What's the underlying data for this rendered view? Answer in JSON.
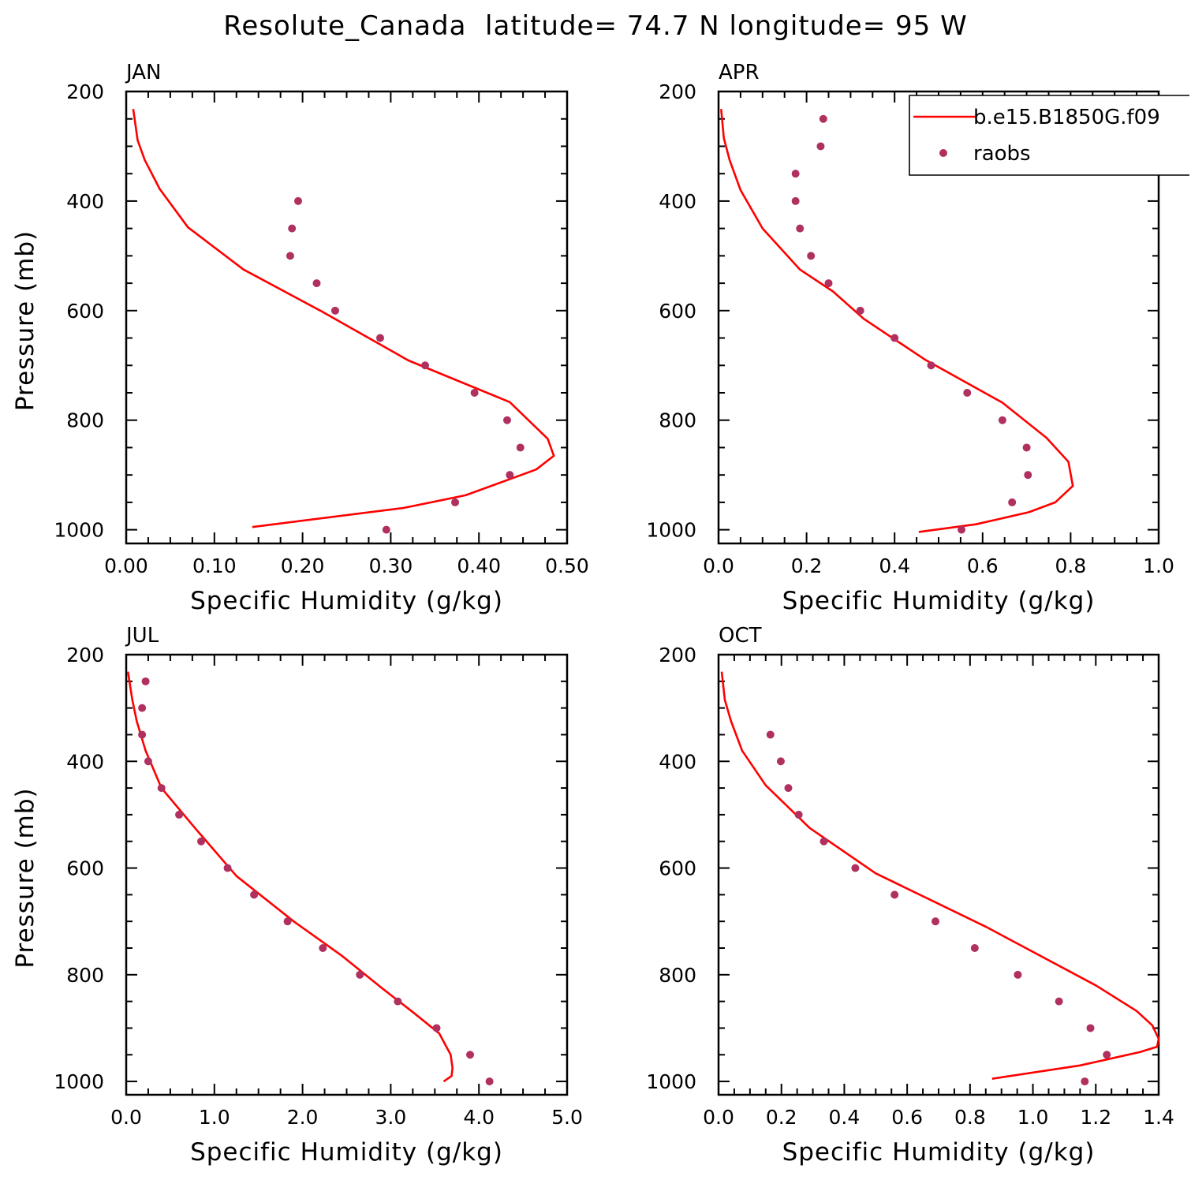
{
  "figure_title": "Resolute_Canada  latitude= 74.7 N longitude= 95 W",
  "legend": {
    "model": "b.e15.B1850G.f09",
    "obs": "raobs"
  },
  "colors": {
    "model_line": "#ff0000",
    "obs_marker": "#b03060",
    "axes": "#000000",
    "background": "#ffffff"
  },
  "chart_data": [
    {
      "type": "line",
      "panel": "JAN",
      "title": "JAN",
      "xlabel": "Specific Humidity (g/kg)",
      "ylabel": "Pressure (mb)",
      "xlim": [
        0,
        0.5
      ],
      "ylim": [
        200,
        1025
      ],
      "y_inverted": true,
      "xticks": [
        0,
        0.1,
        0.2,
        0.3,
        0.4,
        0.5
      ],
      "xtick_labels": [
        "0.00",
        "0.10",
        "0.20",
        "0.30",
        "0.40",
        "0.50"
      ],
      "yticks": [
        200,
        400,
        600,
        800,
        1000
      ],
      "ytick_labels": [
        "200",
        "400",
        "600",
        "800",
        "1000"
      ],
      "show_legend": false,
      "series": [
        {
          "name": "b.e15.B1850G.f09",
          "style": "line",
          "x": [
            0.008,
            0.013,
            0.021,
            0.038,
            0.07,
            0.133,
            0.22,
            0.32,
            0.435,
            0.478,
            0.485,
            0.465,
            0.385,
            0.315,
            0.143
          ],
          "y": [
            232,
            289,
            325,
            378,
            448,
            525,
            600,
            691,
            767,
            834,
            865,
            890,
            937,
            960,
            995
          ]
        },
        {
          "name": "raobs",
          "style": "marker",
          "x": [
            0.195,
            0.188,
            0.186,
            0.216,
            0.237,
            0.288,
            0.339,
            0.395,
            0.432,
            0.447,
            0.435,
            0.373,
            0.295
          ],
          "y": [
            400,
            450,
            500,
            550,
            600,
            650,
            700,
            750,
            800,
            850,
            900,
            950,
            1000
          ]
        }
      ]
    },
    {
      "type": "line",
      "panel": "APR",
      "title": "APR",
      "xlabel": "Specific Humidity (g/kg)",
      "ylabel": "",
      "xlim": [
        0,
        1
      ],
      "ylim": [
        200,
        1025
      ],
      "y_inverted": true,
      "xticks": [
        0,
        0.2,
        0.4,
        0.6,
        0.8,
        1
      ],
      "xtick_labels": [
        "0.0",
        "0.2",
        "0.4",
        "0.6",
        "0.8",
        "1.0"
      ],
      "yticks": [
        200,
        400,
        600,
        800,
        1000
      ],
      "ytick_labels": [
        "200",
        "400",
        "600",
        "800",
        "1000"
      ],
      "show_legend": true,
      "series": [
        {
          "name": "b.e15.B1850G.f09",
          "style": "line",
          "x": [
            0.006,
            0.012,
            0.025,
            0.05,
            0.1,
            0.185,
            0.26,
            0.33,
            0.47,
            0.645,
            0.745,
            0.795,
            0.805,
            0.765,
            0.705,
            0.585,
            0.455
          ],
          "y": [
            232,
            285,
            325,
            380,
            450,
            525,
            565,
            615,
            690,
            768,
            832,
            876,
            920,
            950,
            968,
            990,
            1004
          ]
        },
        {
          "name": "raobs",
          "style": "marker",
          "x": [
            0.238,
            0.232,
            0.175,
            0.175,
            0.185,
            0.21,
            0.25,
            0.322,
            0.4,
            0.483,
            0.565,
            0.645,
            0.7,
            0.703,
            0.667,
            0.552
          ],
          "y": [
            250,
            300,
            350,
            400,
            450,
            500,
            550,
            600,
            650,
            700,
            750,
            800,
            850,
            900,
            950,
            1000
          ]
        }
      ]
    },
    {
      "type": "line",
      "panel": "JUL",
      "title": "JUL",
      "xlabel": "Specific Humidity (g/kg)",
      "ylabel": "Pressure (mb)",
      "xlim": [
        0,
        5
      ],
      "ylim": [
        200,
        1025
      ],
      "y_inverted": true,
      "xticks": [
        0,
        1,
        2,
        3,
        4,
        5
      ],
      "xtick_labels": [
        "0.0",
        "1.0",
        "2.0",
        "3.0",
        "4.0",
        "5.0"
      ],
      "yticks": [
        200,
        400,
        600,
        800,
        1000
      ],
      "ytick_labels": [
        "200",
        "400",
        "600",
        "800",
        "1000"
      ],
      "show_legend": false,
      "series": [
        {
          "name": "b.e15.B1850G.f09",
          "style": "line",
          "x": [
            0.02,
            0.07,
            0.12,
            0.22,
            0.4,
            0.78,
            1.25,
            1.9,
            2.45,
            2.9,
            3.25,
            3.55,
            3.68,
            3.7,
            3.69,
            3.6
          ],
          "y": [
            232,
            285,
            325,
            380,
            450,
            525,
            615,
            700,
            765,
            825,
            870,
            910,
            950,
            975,
            990,
            1000
          ]
        },
        {
          "name": "raobs",
          "style": "marker",
          "x": [
            0.22,
            0.18,
            0.18,
            0.25,
            0.4,
            0.6,
            0.85,
            1.15,
            1.45,
            1.83,
            2.23,
            2.65,
            3.08,
            3.52,
            3.9,
            4.12
          ],
          "y": [
            250,
            300,
            350,
            400,
            450,
            500,
            550,
            600,
            650,
            700,
            750,
            800,
            850,
            900,
            950,
            1000
          ]
        }
      ]
    },
    {
      "type": "line",
      "panel": "OCT",
      "title": "OCT",
      "xlabel": "Specific Humidity (g/kg)",
      "ylabel": "",
      "xlim": [
        0,
        1.4
      ],
      "ylim": [
        200,
        1025
      ],
      "y_inverted": true,
      "xticks": [
        0,
        0.2,
        0.4,
        0.6,
        0.8,
        1,
        1.2,
        1.4
      ],
      "xtick_labels": [
        "0.0",
        "0.2",
        "0.4",
        "0.6",
        "0.8",
        "1.0",
        "1.2",
        "1.4"
      ],
      "yticks": [
        200,
        400,
        600,
        800,
        1000
      ],
      "ytick_labels": [
        "200",
        "400",
        "600",
        "800",
        "1000"
      ],
      "show_legend": false,
      "series": [
        {
          "name": "b.e15.B1850G.f09",
          "style": "line",
          "x": [
            0.01,
            0.02,
            0.04,
            0.075,
            0.15,
            0.29,
            0.5,
            0.85,
            1.2,
            1.33,
            1.38,
            1.4,
            1.395,
            1.34,
            1.15,
            0.87
          ],
          "y": [
            232,
            285,
            325,
            380,
            445,
            525,
            610,
            710,
            820,
            868,
            895,
            920,
            935,
            945,
            970,
            995
          ]
        },
        {
          "name": "raobs",
          "style": "marker",
          "x": [
            0.165,
            0.198,
            0.222,
            0.255,
            0.335,
            0.435,
            0.56,
            0.69,
            0.815,
            0.952,
            1.083,
            1.183,
            1.235,
            1.165
          ],
          "y": [
            350,
            400,
            450,
            500,
            550,
            600,
            650,
            700,
            750,
            800,
            850,
            900,
            950,
            1000
          ]
        }
      ]
    }
  ]
}
